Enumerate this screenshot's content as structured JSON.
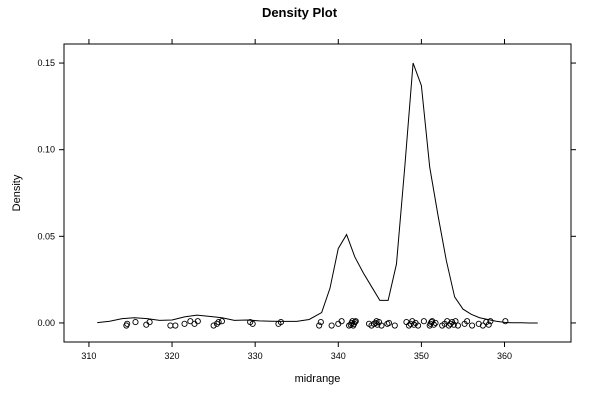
{
  "chart_data": {
    "type": "line",
    "title": "Density Plot",
    "xlabel": "midrange",
    "ylabel": "Density",
    "xlim": [
      307,
      368
    ],
    "ylim": [
      -0.011,
      0.161
    ],
    "x_ticks": [
      310,
      320,
      330,
      340,
      350,
      360
    ],
    "y_ticks": [
      0.0,
      0.05,
      0.1,
      0.15
    ],
    "x_tick_labels": [
      "310",
      "320",
      "330",
      "340",
      "350",
      "360"
    ],
    "y_tick_labels": [
      "0.00",
      "0.05",
      "0.10",
      "0.15"
    ],
    "grid": false,
    "series": [
      {
        "x": [
          311,
          312.5,
          314,
          315.5,
          317,
          318.5,
          320,
          321.5,
          323,
          324.5,
          326,
          327.5,
          329,
          330.5,
          332,
          333.5,
          335,
          336.5,
          338,
          339,
          340,
          341,
          342,
          343,
          344,
          345,
          346,
          347,
          348,
          349,
          350,
          351,
          352,
          353,
          354,
          355,
          356,
          357,
          358,
          359,
          360,
          361,
          362,
          363,
          364
        ],
        "y": [
          0.0002,
          0.001,
          0.0025,
          0.003,
          0.0025,
          0.0015,
          0.0017,
          0.0035,
          0.0045,
          0.0038,
          0.003,
          0.0015,
          0.0017,
          0.0012,
          0.001,
          0.0009,
          0.0009,
          0.002,
          0.006,
          0.02,
          0.043,
          0.051,
          0.038,
          0.029,
          0.021,
          0.013,
          0.013,
          0.034,
          0.09,
          0.15,
          0.137,
          0.09,
          0.062,
          0.036,
          0.015,
          0.008,
          0.005,
          0.003,
          0.002,
          0.001,
          0.0003,
          0.0001,
          0.0001,
          0,
          0
        ]
      }
    ],
    "rug_points": {
      "x": [
        314.5,
        314.6,
        315.6,
        316.9,
        317.3,
        319.8,
        320.4,
        321.5,
        322.2,
        322.7,
        323.1,
        325.0,
        325.4,
        325.6,
        326.0,
        329.4,
        329.7,
        332.8,
        333.1,
        337.7,
        337.9,
        339.2,
        340.0,
        340.4,
        341.3,
        341.5,
        341.6,
        341.7,
        341.8,
        341.9,
        342.0,
        342.1,
        343.7,
        344.0,
        344.3,
        344.5,
        344.6,
        344.7,
        344.9,
        345.2,
        345.9,
        346.1,
        346.8,
        348.2,
        348.5,
        348.7,
        348.9,
        349.1,
        349.3,
        349.6,
        350.3,
        351.0,
        351.1,
        351.2,
        351.3,
        351.5,
        351.7,
        352.5,
        352.8,
        353.1,
        353.3,
        353.5,
        353.7,
        353.9,
        354.1,
        354.4,
        355.2,
        355.5,
        356.1,
        356.9,
        357.4,
        357.8,
        358.1,
        358.3,
        360.1
      ],
      "y": [
        -0.0015,
        -0.0005,
        0.0005,
        -0.001,
        0.0005,
        -0.0015,
        -0.0015,
        -0.0005,
        0.001,
        -0.0005,
        0.001,
        -0.0015,
        -0.0005,
        0.0005,
        0.001,
        0.0005,
        -0.0005,
        -0.0005,
        0.0005,
        -0.0015,
        0.0005,
        -0.0015,
        -0.0005,
        0.001,
        -0.0015,
        -0.001,
        0.0,
        0.001,
        -0.0015,
        -0.0005,
        0.0005,
        0.001,
        -0.0005,
        -0.0015,
        -0.0005,
        0.0,
        0.001,
        -0.001,
        0.0005,
        -0.0015,
        -0.0005,
        0.0,
        -0.0015,
        0.0005,
        -0.0015,
        -0.0005,
        0.001,
        -0.001,
        0.0,
        -0.0015,
        0.001,
        -0.0015,
        -0.0005,
        0.0005,
        0.001,
        -0.001,
        0.0,
        -0.0015,
        -0.0005,
        0.001,
        -0.0015,
        -0.0005,
        0.0005,
        -0.001,
        0.001,
        -0.0015,
        -0.0005,
        0.001,
        -0.0015,
        -0.0005,
        -0.0015,
        0.0005,
        -0.001,
        0.001,
        0.001
      ]
    }
  }
}
